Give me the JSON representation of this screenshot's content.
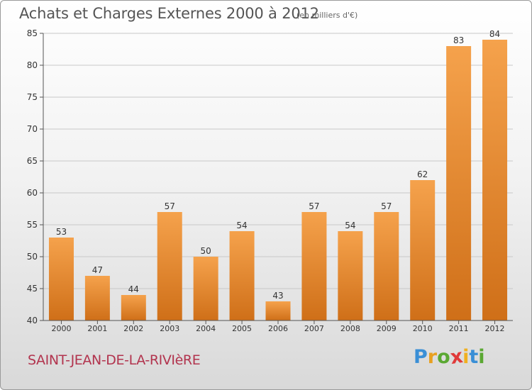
{
  "header": {
    "title": "Achats et Charges Externes 2000 à 2012",
    "unit": "(en milliers d'€)"
  },
  "footer": {
    "city": "SAINT-JEAN-DE-LA-RIVIèRE",
    "brand_letters": [
      {
        "ch": "P",
        "color": "#3a8fd6"
      },
      {
        "ch": "r",
        "color": "#e8a020"
      },
      {
        "ch": "o",
        "color": "#5aa832"
      },
      {
        "ch": "x",
        "color": "#e03a3a"
      },
      {
        "ch": "i",
        "color": "#f0b020"
      },
      {
        "ch": "t",
        "color": "#3a8fd6"
      },
      {
        "ch": "i",
        "color": "#5aa832"
      }
    ]
  },
  "colors": {
    "bar_top": "#f5a24c",
    "bar_bottom": "#cf6f18",
    "grid": "#c8c8c8",
    "axis": "#555555",
    "text": "#333333"
  },
  "chart_data": {
    "type": "bar",
    "categories": [
      "2000",
      "2001",
      "2002",
      "2003",
      "2004",
      "2005",
      "2006",
      "2007",
      "2008",
      "2009",
      "2010",
      "2011",
      "2012"
    ],
    "values": [
      53,
      47,
      44,
      57,
      50,
      54,
      43,
      57,
      54,
      57,
      62,
      83,
      84
    ],
    "ylim": [
      40,
      85
    ],
    "yticks": [
      40,
      45,
      50,
      55,
      60,
      65,
      70,
      75,
      80,
      85
    ],
    "grid": true
  }
}
